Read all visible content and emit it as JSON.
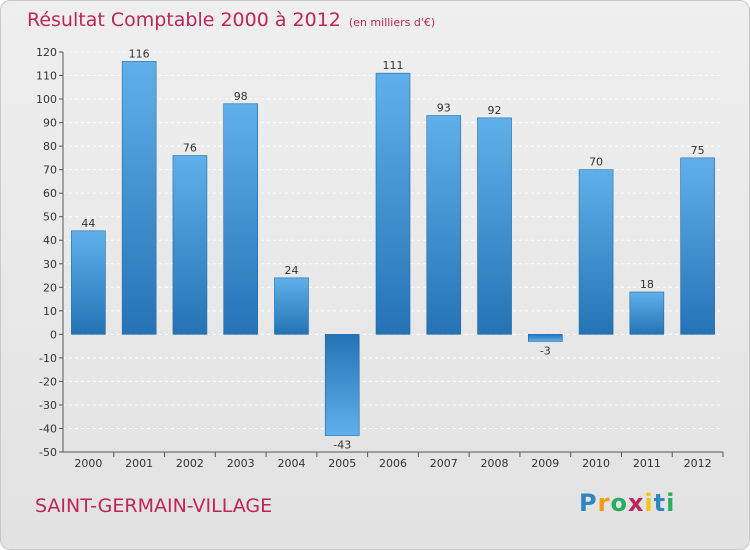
{
  "title": "Résultat Comptable 2000 à 2012",
  "subtitle": "(en milliers d'€)",
  "commune": "SAINT-GERMAIN-VILLAGE",
  "logo": {
    "text": "Proxiti",
    "letters": [
      "P",
      "r",
      "o",
      "x",
      "i",
      "t",
      "i"
    ],
    "colors": [
      "#2e86c1",
      "#f39c12",
      "#27ae60",
      "#c0245a",
      "#f1c40f",
      "#2e86c1",
      "#27ae60"
    ]
  },
  "colors": {
    "bar_top": "#5fb0ea",
    "bar_bottom": "#2573b5",
    "accent": "#c0245a"
  },
  "chart_data": {
    "type": "bar",
    "categories": [
      "2000",
      "2001",
      "2002",
      "2003",
      "2004",
      "2005",
      "2006",
      "2007",
      "2008",
      "2009",
      "2010",
      "2011",
      "2012"
    ],
    "values": [
      44,
      116,
      76,
      98,
      24,
      -43,
      111,
      93,
      92,
      -3,
      70,
      18,
      75
    ],
    "title": "Résultat Comptable 2000 à 2012",
    "xlabel": "",
    "ylabel": "",
    "ylim": [
      -50,
      120
    ],
    "yticks": [
      -50,
      -40,
      -30,
      -20,
      -10,
      0,
      10,
      20,
      30,
      40,
      50,
      60,
      70,
      80,
      90,
      100,
      110,
      120
    ],
    "grid": true
  }
}
